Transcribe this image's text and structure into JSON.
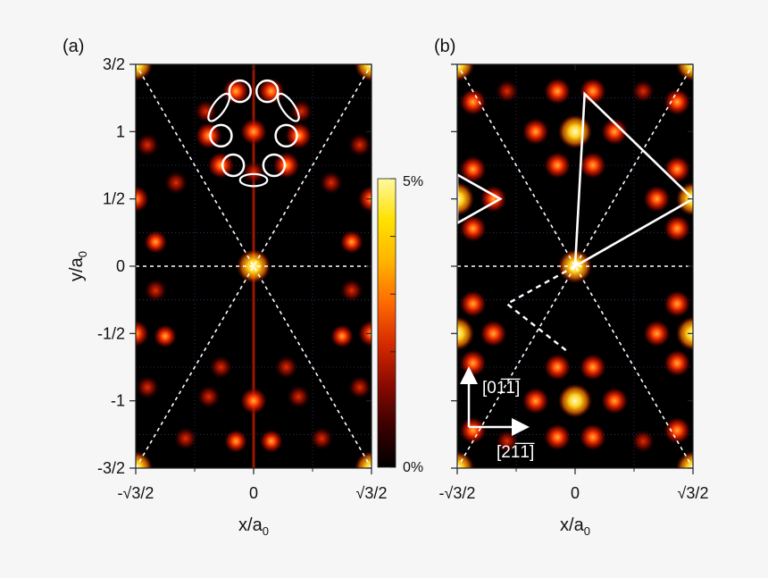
{
  "chart_data": [
    {
      "type": "heatmap",
      "panel_label": "(a)",
      "xlabel": "x/a",
      "xlabel_sub": "0",
      "ylabel": "y/a",
      "ylabel_sub": "0",
      "x_ticks": [
        {
          "label": "-√3/2",
          "value": -0.866
        },
        {
          "label": "0",
          "value": 0
        },
        {
          "label": "√3/2",
          "value": 0.866
        }
      ],
      "y_ticks": [
        {
          "label": "3/2",
          "value": 1.5
        },
        {
          "label": "1",
          "value": 1
        },
        {
          "label": "1/2",
          "value": 0.5
        },
        {
          "label": "0",
          "value": 0
        },
        {
          "label": "-1/2",
          "value": -0.5
        },
        {
          "label": "-1",
          "value": -1
        },
        {
          "label": "-3/2",
          "value": -1.5
        }
      ],
      "xlim": [
        -0.866,
        0.866
      ],
      "ylim": [
        -1.5,
        1.5
      ],
      "peaks": [
        {
          "x": 0,
          "y": 0,
          "i": 1.0
        },
        {
          "x": 0,
          "y": 1,
          "i": 0.75
        },
        {
          "x": 0,
          "y": -1,
          "i": 0.75
        },
        {
          "x": -0.866,
          "y": 1.5,
          "i": 1.0
        },
        {
          "x": 0.866,
          "y": 1.5,
          "i": 1.0
        },
        {
          "x": -0.866,
          "y": -1.5,
          "i": 1.0
        },
        {
          "x": 0.866,
          "y": -1.5,
          "i": 1.0
        },
        {
          "x": -0.866,
          "y": 0.5,
          "i": 0.85
        },
        {
          "x": 0.866,
          "y": 0.5,
          "i": 0.85
        },
        {
          "x": -0.866,
          "y": -0.5,
          "i": 0.85
        },
        {
          "x": 0.866,
          "y": -0.5,
          "i": 0.85
        },
        {
          "x": -0.13,
          "y": 1.3,
          "i": 0.7
        },
        {
          "x": 0.13,
          "y": 1.3,
          "i": 0.7
        },
        {
          "x": -0.33,
          "y": 0.97,
          "i": 0.7
        },
        {
          "x": 0.33,
          "y": 0.97,
          "i": 0.7
        },
        {
          "x": -0.24,
          "y": 0.75,
          "i": 0.7
        },
        {
          "x": 0.24,
          "y": 0.75,
          "i": 0.7
        },
        {
          "x": -0.72,
          "y": 0.18,
          "i": 0.6
        },
        {
          "x": 0.72,
          "y": 0.18,
          "i": 0.6
        },
        {
          "x": -0.57,
          "y": 0.62,
          "i": 0.55
        },
        {
          "x": 0.57,
          "y": 0.62,
          "i": 0.55
        },
        {
          "x": -0.65,
          "y": -0.52,
          "i": 0.6
        },
        {
          "x": 0.65,
          "y": -0.52,
          "i": 0.6
        },
        {
          "x": -0.72,
          "y": -0.18,
          "i": 0.55
        },
        {
          "x": 0.72,
          "y": -0.18,
          "i": 0.55
        },
        {
          "x": -0.33,
          "y": -0.97,
          "i": 0.55
        },
        {
          "x": 0.33,
          "y": -0.97,
          "i": 0.55
        },
        {
          "x": -0.13,
          "y": -1.3,
          "i": 0.6
        },
        {
          "x": 0.13,
          "y": -1.3,
          "i": 0.6
        },
        {
          "x": -0.24,
          "y": -0.75,
          "i": 0.5
        },
        {
          "x": 0.24,
          "y": -0.75,
          "i": 0.5
        },
        {
          "x": -0.78,
          "y": 0.9,
          "i": 0.5
        },
        {
          "x": 0.78,
          "y": 0.9,
          "i": 0.5
        },
        {
          "x": -0.78,
          "y": -0.9,
          "i": 0.5
        },
        {
          "x": 0.78,
          "y": -0.9,
          "i": 0.5
        },
        {
          "x": -0.5,
          "y": -1.28,
          "i": 0.5
        },
        {
          "x": 0.5,
          "y": -1.28,
          "i": 0.5
        },
        {
          "x": -0.35,
          "y": 1.15,
          "i": 0.45
        },
        {
          "x": 0.35,
          "y": 1.15,
          "i": 0.45
        },
        {
          "x": 0,
          "y": 0.7,
          "i": 0.45
        }
      ],
      "rings": [
        {
          "x": -0.1,
          "y": 1.3
        },
        {
          "x": 0.1,
          "y": 1.3
        },
        {
          "x": -0.24,
          "y": 0.97
        },
        {
          "x": 0.24,
          "y": 0.97
        },
        {
          "x": -0.15,
          "y": 0.75
        },
        {
          "x": 0.15,
          "y": 0.75
        }
      ],
      "ellipses": [
        {
          "x": -0.255,
          "y": 1.18,
          "rx": 0.045,
          "ry": 0.12,
          "rot": 35
        },
        {
          "x": 0.255,
          "y": 1.18,
          "rx": 0.045,
          "ry": 0.12,
          "rot": -35
        },
        {
          "x": 0,
          "y": 0.64,
          "rx": 0.1,
          "ry": 0.045,
          "rot": 0
        }
      ]
    },
    {
      "type": "heatmap",
      "panel_label": "(b)",
      "xlabel": "x/a",
      "xlabel_sub": "0",
      "x_ticks": [
        {
          "label": "-√3/2",
          "value": -0.866
        },
        {
          "label": "0",
          "value": 0
        },
        {
          "label": "√3/2",
          "value": 0.866
        }
      ],
      "xlim": [
        -0.866,
        0.866
      ],
      "ylim": [
        -1.5,
        1.5
      ],
      "direction_labels": {
        "up": "[01̅1̅]",
        "right": "[21̅1̅]"
      },
      "peaks": [
        {
          "x": 0,
          "y": 0,
          "i": 1.0
        },
        {
          "x": 0,
          "y": 1,
          "i": 0.95
        },
        {
          "x": 0,
          "y": -1,
          "i": 0.95
        },
        {
          "x": -0.866,
          "y": 1.5,
          "i": 1.0
        },
        {
          "x": 0.866,
          "y": 1.5,
          "i": 1.0
        },
        {
          "x": -0.866,
          "y": -1.5,
          "i": 1.0
        },
        {
          "x": 0.866,
          "y": -1.5,
          "i": 1.0
        },
        {
          "x": -0.866,
          "y": 0.5,
          "i": 0.95
        },
        {
          "x": 0.866,
          "y": 0.5,
          "i": 0.95
        },
        {
          "x": -0.866,
          "y": -0.5,
          "i": 0.95
        },
        {
          "x": 0.866,
          "y": -0.5,
          "i": 0.95
        },
        {
          "x": -0.13,
          "y": 1.3,
          "i": 0.75
        },
        {
          "x": 0.13,
          "y": 1.3,
          "i": 0.75
        },
        {
          "x": -0.29,
          "y": 1.0,
          "i": 0.75
        },
        {
          "x": 0.29,
          "y": 1.0,
          "i": 0.75
        },
        {
          "x": -0.13,
          "y": 0.75,
          "i": 0.75
        },
        {
          "x": 0.13,
          "y": 0.75,
          "i": 0.75
        },
        {
          "x": -0.13,
          "y": -0.75,
          "i": 0.75
        },
        {
          "x": 0.13,
          "y": -0.75,
          "i": 0.75
        },
        {
          "x": -0.29,
          "y": -1.0,
          "i": 0.75
        },
        {
          "x": 0.29,
          "y": -1.0,
          "i": 0.75
        },
        {
          "x": -0.13,
          "y": -1.27,
          "i": 0.75
        },
        {
          "x": 0.13,
          "y": -1.27,
          "i": 0.75
        },
        {
          "x": -0.75,
          "y": 0.72,
          "i": 0.75
        },
        {
          "x": 0.75,
          "y": 0.72,
          "i": 0.75
        },
        {
          "x": -0.6,
          "y": 0.5,
          "i": 0.75
        },
        {
          "x": 0.6,
          "y": 0.5,
          "i": 0.75
        },
        {
          "x": -0.75,
          "y": 0.28,
          "i": 0.75
        },
        {
          "x": 0.75,
          "y": 0.28,
          "i": 0.75
        },
        {
          "x": -0.75,
          "y": -0.28,
          "i": 0.75
        },
        {
          "x": 0.75,
          "y": -0.28,
          "i": 0.75
        },
        {
          "x": -0.6,
          "y": -0.5,
          "i": 0.75
        },
        {
          "x": 0.6,
          "y": -0.5,
          "i": 0.75
        },
        {
          "x": -0.75,
          "y": -0.72,
          "i": 0.75
        },
        {
          "x": 0.75,
          "y": -0.72,
          "i": 0.75
        },
        {
          "x": -0.75,
          "y": 1.22,
          "i": 0.7
        },
        {
          "x": 0.75,
          "y": 1.22,
          "i": 0.7
        },
        {
          "x": -0.75,
          "y": -1.22,
          "i": 0.7
        },
        {
          "x": 0.75,
          "y": -1.22,
          "i": 0.7
        },
        {
          "x": -0.5,
          "y": 1.3,
          "i": 0.4
        },
        {
          "x": 0.5,
          "y": 1.3,
          "i": 0.4
        },
        {
          "x": -0.5,
          "y": -1.3,
          "i": 0.4
        },
        {
          "x": 0.5,
          "y": -1.3,
          "i": 0.4
        }
      ],
      "triangles": [
        [
          [
            0,
            0
          ],
          [
            0.07,
            1.28
          ],
          [
            0.866,
            0.5
          ]
        ],
        [
          [
            -0.866,
            0.68
          ],
          [
            -0.55,
            0.5
          ],
          [
            -0.866,
            0.32
          ]
        ]
      ],
      "dashed_triangle": [
        [
          0,
          0
        ],
        [
          -0.5,
          -0.28
        ],
        [
          -0.06,
          -0.63
        ]
      ]
    }
  ],
  "colorbar": {
    "max_label": "5%",
    "min_label": "0%",
    "colors": [
      "#000000",
      "#3a0000",
      "#8a0a00",
      "#d62a00",
      "#ff6a00",
      "#ffb400",
      "#ffe100",
      "#fff8a0"
    ]
  }
}
